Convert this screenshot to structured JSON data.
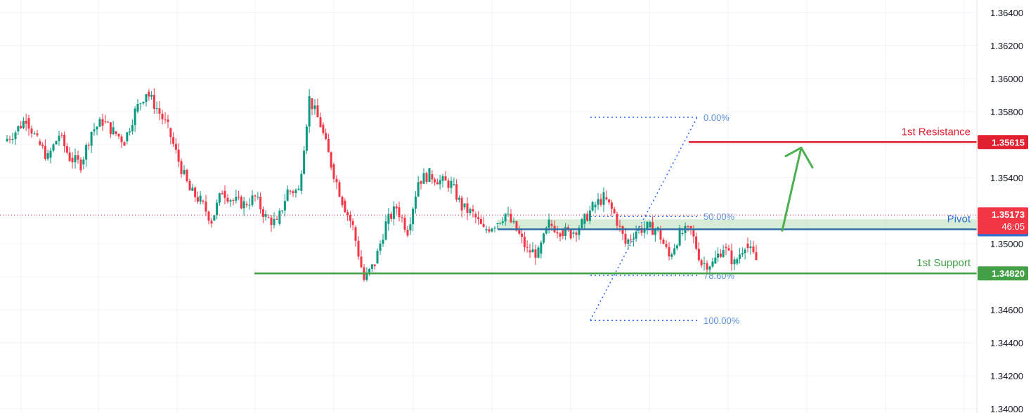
{
  "chart_data": {
    "type": "candlestick",
    "ylim": [
      1.34,
      1.3645
    ],
    "y_ticks": [
      "1.36400",
      "1.36200",
      "1.36000",
      "1.35800",
      "1.35600",
      "1.35400",
      "1.35200",
      "1.35000",
      "1.34800",
      "1.34600",
      "1.34400",
      "1.34200",
      "1.34000"
    ],
    "y_tick_values": [
      1.364,
      1.362,
      1.36,
      1.358,
      1.356,
      1.354,
      1.352,
      1.35,
      1.348,
      1.346,
      1.344,
      1.342,
      1.34
    ],
    "grid": true,
    "current_price": {
      "value": 1.35173,
      "label": "1.35173",
      "countdown": "46:05",
      "color": "#f23645"
    },
    "levels": [
      {
        "name": "1st Resistance",
        "value": 1.35615,
        "label": "1.35615",
        "color": "#e0202f"
      },
      {
        "name": "Pivot",
        "value": 1.35087,
        "label": "1.35087",
        "color": "#2f6fd1",
        "line_color": "#2e6fa6"
      },
      {
        "name": "1st Support",
        "value": 1.3482,
        "label": "1.34820",
        "color": "#43a047"
      }
    ],
    "fibonacci": [
      {
        "label": "0.00%",
        "value": 1.35765
      },
      {
        "label": "50.00%",
        "value": 1.35165
      },
      {
        "label": "78.60%",
        "value": 1.34808
      },
      {
        "label": "100.00%",
        "value": 1.34535
      }
    ],
    "pivot_zone": [
      1.35087,
      1.35147
    ],
    "up_color": "#089981",
    "down_color": "#f23645",
    "path": [
      1.3562,
      1.3568,
      1.3576,
      1.3562,
      1.3552,
      1.3566,
      1.3552,
      1.3548,
      1.3568,
      1.3574,
      1.3568,
      1.3562,
      1.358,
      1.3592,
      1.3582,
      1.357,
      1.355,
      1.3532,
      1.3526,
      1.3514,
      1.3532,
      1.3526,
      1.3524,
      1.3528,
      1.3516,
      1.3512,
      1.3532,
      1.3532,
      1.3588,
      1.3572,
      1.3548,
      1.3526,
      1.351,
      1.3478,
      1.3488,
      1.3512,
      1.3522,
      1.3508,
      1.3538,
      1.3542,
      1.3538,
      1.3536,
      1.3522,
      1.3518,
      1.3508,
      1.3512,
      1.3518,
      1.3508,
      1.3496,
      1.3494,
      1.3512,
      1.3508,
      1.3506,
      1.3512,
      1.3522,
      1.3528,
      1.3518,
      1.35,
      1.3508,
      1.351,
      1.3508,
      1.3492,
      1.3506,
      1.3508,
      1.3488,
      1.3488,
      1.3498,
      1.3488,
      1.35,
      1.349,
      1.3478,
      1.347,
      1.3466,
      1.347,
      1.346,
      1.3462,
      1.348,
      1.3498,
      1.351,
      1.353,
      1.3526,
      1.3538,
      1.3552,
      1.3562,
      1.355,
      1.3538,
      1.353,
      1.3536,
      1.3528,
      1.3517
    ],
    "xs": [
      8,
      24,
      39,
      55,
      70,
      86,
      101,
      117,
      132,
      148,
      163,
      179,
      194,
      210,
      225,
      241,
      256,
      272,
      287,
      303,
      318,
      334,
      349,
      365,
      380,
      396,
      411,
      427,
      442,
      458,
      473,
      489,
      504,
      520,
      535,
      551,
      566,
      582,
      597,
      613,
      628,
      644,
      659,
      675,
      690,
      706,
      721,
      737,
      752,
      768,
      783,
      799,
      814,
      830,
      845,
      861,
      876,
      892,
      907,
      923,
      938,
      954,
      969,
      985,
      1000,
      1016,
      1031,
      1047,
      1062,
      1078,
      1093,
      1109,
      1124,
      1140,
      1155,
      1171,
      1186,
      1202,
      1217,
      1233,
      1248,
      1264,
      1279,
      1295,
      1310,
      1326,
      1341,
      1357,
      1372,
      1388
    ]
  }
}
